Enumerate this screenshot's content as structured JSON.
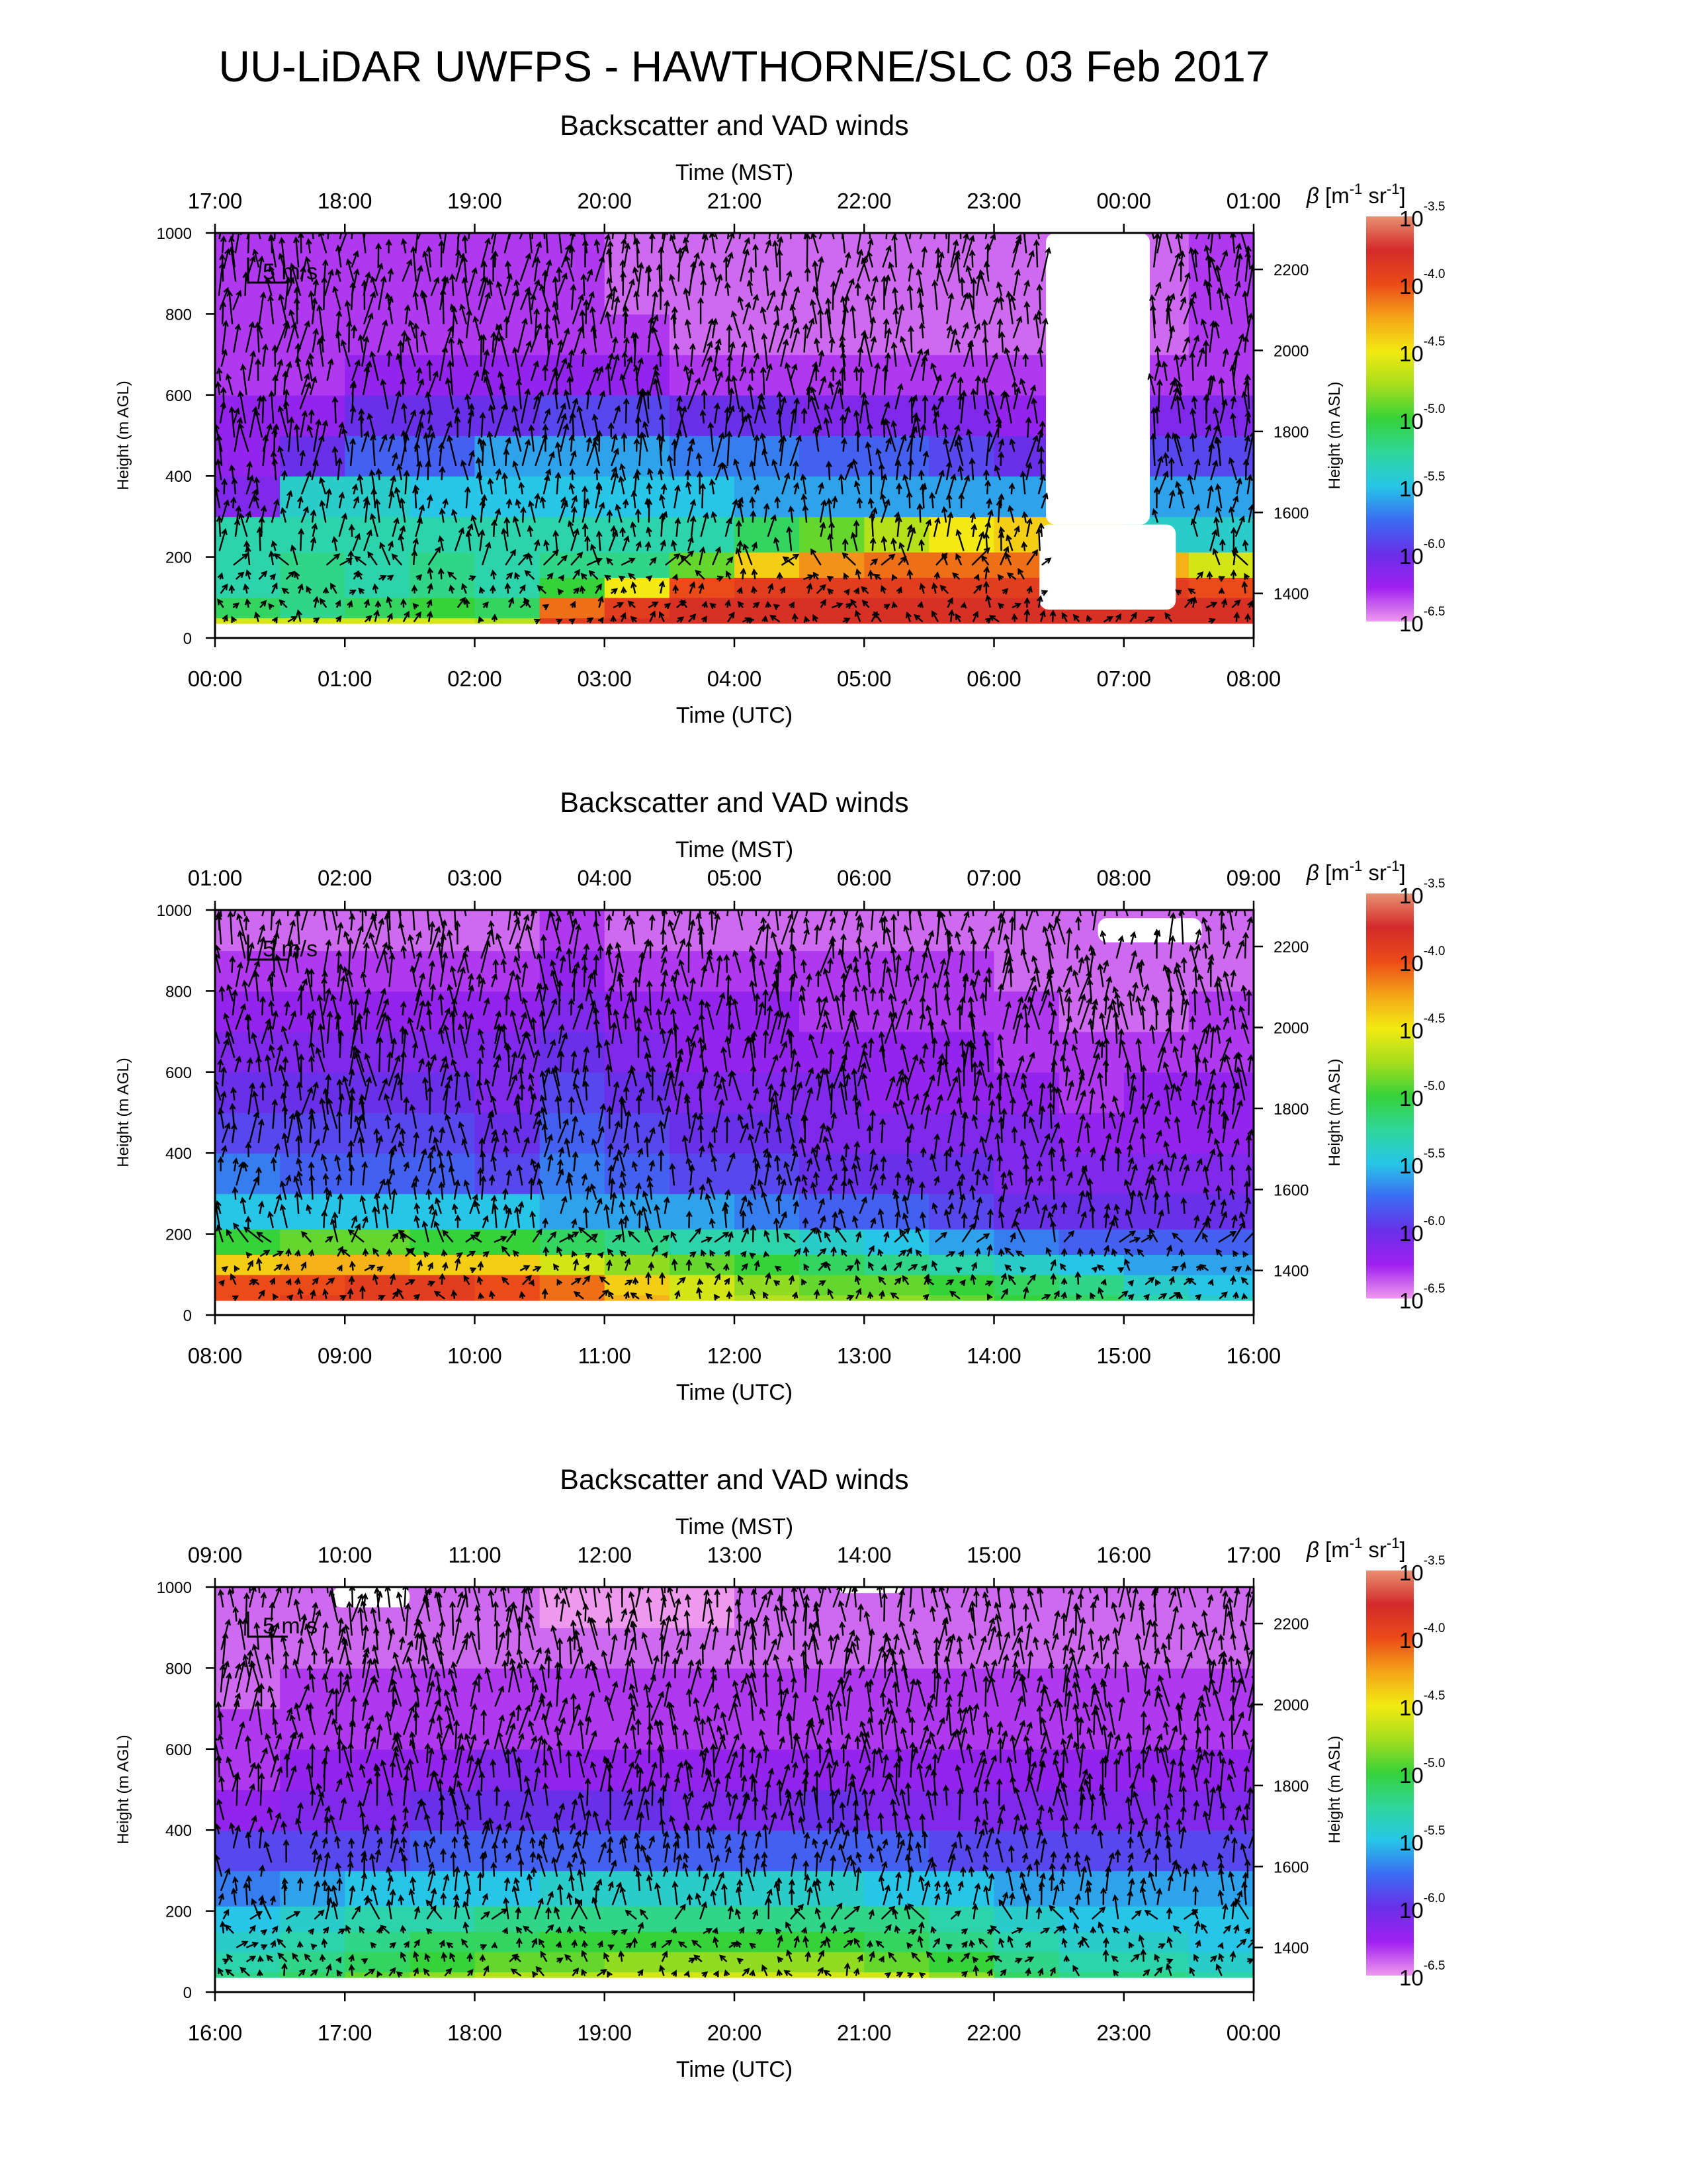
{
  "title": "UU-LiDAR UWFPS - HAWTHORNE/SLC 03 Feb 2017",
  "scale_arrow_label": "5 m/s",
  "colors": {
    "beta_scale": [
      "#ee99ee",
      "#a020f0",
      "#6a2fe8",
      "#3a6cf2",
      "#27c6e8",
      "#2fd69a",
      "#36d23a",
      "#a6de1c",
      "#f2ea12",
      "#f4a418",
      "#ec4a18",
      "#d42a2a",
      "#e89070"
    ],
    "wind_arrows": "#000000",
    "missing": "#ffffff"
  },
  "chart_data": [
    {
      "type": "heatmap",
      "title": "Backscatter and VAD winds",
      "xlabel_top": "Time (MST)",
      "xticks_top": [
        "17:00",
        "18:00",
        "19:00",
        "20:00",
        "21:00",
        "22:00",
        "23:00",
        "00:00",
        "01:00"
      ],
      "xlabel": "Time (UTC)",
      "xticks": [
        "00:00",
        "01:00",
        "02:00",
        "03:00",
        "04:00",
        "05:00",
        "06:00",
        "07:00",
        "08:00"
      ],
      "xlim_utc_hours": [
        0,
        8
      ],
      "ylabel": "Height (m AGL)",
      "yticks": [
        "0",
        "200",
        "400",
        "600",
        "800",
        "1000"
      ],
      "ylim": [
        0,
        1000
      ],
      "ylabel_right": "Height (m ASL)",
      "yticks_right": [
        "1400",
        "1600",
        "1800",
        "2000",
        "2200"
      ],
      "colorbar_label": "β [m-1 sr-1]",
      "colorbar_log10_ticks": [
        "-3.5",
        "-4.0",
        "-4.5",
        "-5.0",
        "-5.5",
        "-6.0",
        "-6.5"
      ],
      "colorbar_range_log10": [
        -6.5,
        -3.5
      ],
      "grid": false,
      "log10_beta_rows_heights_m": [
        25,
        75,
        125,
        175,
        250,
        350,
        450,
        550,
        650,
        750,
        850,
        950
      ],
      "log10_beta_cols_utc_hours": [
        0.25,
        0.75,
        1.25,
        1.75,
        2.25,
        2.75,
        3.25,
        3.75,
        4.25,
        4.75,
        5.25,
        5.75,
        6.25,
        6.75,
        7.25,
        7.75
      ],
      "log10_beta": [
        [
          -4.6,
          -4.6,
          -4.6,
          -4.6,
          -4.7,
          -3.9,
          -3.8,
          -3.8,
          -3.8,
          -3.8,
          -3.8,
          -3.8,
          -3.8,
          -3.8,
          -3.8,
          -3.8
        ],
        [
          -5.1,
          -5.2,
          -5.1,
          -5.0,
          -5.1,
          -4.1,
          -3.9,
          -3.8,
          -3.8,
          -3.8,
          -3.8,
          -3.8,
          -3.8,
          -3.8,
          -3.8,
          -3.8
        ],
        [
          -5.3,
          -5.2,
          -5.3,
          -5.2,
          -5.3,
          -5.0,
          -4.5,
          -4.0,
          -3.9,
          -3.9,
          -3.9,
          -3.9,
          -3.9,
          -3.9,
          -3.9,
          -4.0
        ],
        [
          -5.3,
          -5.2,
          -5.3,
          -5.2,
          -5.3,
          -5.2,
          -5.2,
          -4.9,
          -4.4,
          -4.2,
          -4.1,
          -4.1,
          -4.1,
          -4.1,
          -4.3,
          -4.6
        ],
        [
          -5.3,
          -5.3,
          -5.3,
          -5.3,
          -5.3,
          -5.3,
          -5.3,
          -5.3,
          -5.1,
          -4.9,
          -4.7,
          -4.5,
          -4.4,
          -4.6,
          -5.4,
          -5.4
        ],
        [
          -6.1,
          -5.4,
          -5.4,
          -5.5,
          -5.5,
          -5.5,
          -5.5,
          -5.5,
          -5.6,
          -5.6,
          -5.6,
          -5.6,
          -5.6,
          -5.7,
          -5.6,
          -5.6
        ],
        [
          -6.2,
          -6.0,
          -5.8,
          -5.8,
          -5.6,
          -5.6,
          -5.6,
          -5.7,
          -5.7,
          -5.8,
          -5.8,
          -5.9,
          -6.0,
          -6.1,
          -5.9,
          -5.9
        ],
        [
          -6.2,
          -6.2,
          -6.0,
          -6.0,
          -6.0,
          -5.9,
          -5.9,
          -6.0,
          -6.0,
          -6.1,
          -6.1,
          -6.1,
          -6.2,
          -6.2,
          -6.1,
          -6.1
        ],
        [
          -6.3,
          -6.3,
          -6.2,
          -6.2,
          -6.2,
          -6.2,
          -6.2,
          -6.3,
          -6.3,
          -6.3,
          -6.3,
          -6.3,
          -6.3,
          -6.3,
          -6.3,
          -6.3
        ],
        [
          -6.3,
          -6.3,
          -6.3,
          -6.3,
          -6.3,
          -6.3,
          -6.3,
          -6.4,
          -6.4,
          -6.4,
          -6.4,
          -6.4,
          -6.4,
          -6.4,
          -6.4,
          -6.3
        ],
        [
          -6.3,
          -6.3,
          -6.3,
          -6.3,
          -6.3,
          -6.3,
          -6.4,
          -6.4,
          -6.4,
          -6.4,
          -6.4,
          -6.4,
          -6.4,
          -6.4,
          -6.4,
          -6.3
        ],
        [
          -6.3,
          -6.3,
          -6.3,
          -6.3,
          -6.3,
          -6.3,
          -6.4,
          -6.4,
          -6.4,
          -6.4,
          -6.4,
          -6.4,
          -6.4,
          -6.4,
          -6.4,
          -6.3
        ]
      ],
      "missing_data": [
        {
          "utc_hours": [
            6.4,
            7.2
          ],
          "height_m": [
            280,
            1000
          ]
        },
        {
          "utc_hours": [
            6.35,
            7.4
          ],
          "height_m": [
            70,
            280
          ]
        }
      ],
      "wind_field": "dense VAD vectors; mostly northward at low levels, north-northeastward aloft before 02:30 UTC; weak near surface"
    },
    {
      "type": "heatmap",
      "title": "Backscatter and VAD winds",
      "xlabel_top": "Time (MST)",
      "xticks_top": [
        "01:00",
        "02:00",
        "03:00",
        "04:00",
        "05:00",
        "06:00",
        "07:00",
        "08:00",
        "09:00"
      ],
      "xlabel": "Time (UTC)",
      "xticks": [
        "08:00",
        "09:00",
        "10:00",
        "11:00",
        "12:00",
        "13:00",
        "14:00",
        "15:00",
        "16:00"
      ],
      "xlim_utc_hours": [
        8,
        16
      ],
      "ylabel": "Height (m AGL)",
      "yticks": [
        "0",
        "200",
        "400",
        "600",
        "800",
        "1000"
      ],
      "ylim": [
        0,
        1000
      ],
      "ylabel_right": "Height (m ASL)",
      "yticks_right": [
        "1400",
        "1600",
        "1800",
        "2000",
        "2200"
      ],
      "colorbar_label": "β [m-1 sr-1]",
      "colorbar_log10_ticks": [
        "-3.5",
        "-4.0",
        "-4.5",
        "-5.0",
        "-5.5",
        "-6.0",
        "-6.5"
      ],
      "colorbar_range_log10": [
        -6.5,
        -3.5
      ],
      "grid": false,
      "log10_beta_rows_heights_m": [
        25,
        75,
        125,
        175,
        250,
        350,
        450,
        550,
        650,
        750,
        850,
        950
      ],
      "log10_beta_cols_utc_hours": [
        8.25,
        8.75,
        9.25,
        9.75,
        10.25,
        10.75,
        11.25,
        11.75,
        12.25,
        12.75,
        13.25,
        13.75,
        14.25,
        14.75,
        15.25,
        15.75
      ],
      "log10_beta": [
        [
          -4.0,
          -3.9,
          -3.9,
          -3.9,
          -4.0,
          -4.1,
          -4.3,
          -4.6,
          -4.7,
          -4.8,
          -4.8,
          -4.9,
          -5.0,
          -5.1,
          -5.3,
          -5.4
        ],
        [
          -4.0,
          -4.0,
          -3.9,
          -3.9,
          -4.0,
          -4.1,
          -4.4,
          -4.6,
          -4.8,
          -4.9,
          -4.9,
          -5.0,
          -5.1,
          -5.2,
          -5.4,
          -5.5
        ],
        [
          -4.4,
          -4.3,
          -4.3,
          -4.4,
          -4.4,
          -4.6,
          -4.8,
          -4.9,
          -5.0,
          -5.1,
          -5.2,
          -5.3,
          -5.4,
          -5.5,
          -5.6,
          -5.6
        ],
        [
          -5.0,
          -4.9,
          -4.9,
          -5.0,
          -5.0,
          -5.1,
          -5.2,
          -5.3,
          -5.3,
          -5.4,
          -5.5,
          -5.6,
          -5.7,
          -5.8,
          -5.8,
          -5.8
        ],
        [
          -5.5,
          -5.5,
          -5.5,
          -5.5,
          -5.5,
          -5.6,
          -5.6,
          -5.6,
          -5.7,
          -5.8,
          -5.8,
          -5.9,
          -6.0,
          -6.0,
          -6.0,
          -6.0
        ],
        [
          -5.7,
          -5.8,
          -5.8,
          -5.8,
          -5.9,
          -5.7,
          -5.8,
          -5.9,
          -5.9,
          -6.0,
          -6.0,
          -6.0,
          -6.1,
          -6.1,
          -6.1,
          -6.1
        ],
        [
          -5.9,
          -5.9,
          -5.9,
          -5.9,
          -6.0,
          -5.8,
          -5.9,
          -6.0,
          -6.0,
          -6.1,
          -6.1,
          -6.1,
          -6.1,
          -6.2,
          -6.2,
          -6.2
        ],
        [
          -6.0,
          -6.0,
          -6.0,
          -6.0,
          -6.1,
          -5.9,
          -6.0,
          -6.1,
          -6.1,
          -6.1,
          -6.2,
          -6.2,
          -6.2,
          -6.3,
          -6.2,
          -6.2
        ],
        [
          -6.1,
          -6.1,
          -6.1,
          -6.1,
          -6.1,
          -6.0,
          -6.1,
          -6.2,
          -6.2,
          -6.2,
          -6.2,
          -6.2,
          -6.3,
          -6.3,
          -6.3,
          -6.3
        ],
        [
          -6.2,
          -6.2,
          -6.2,
          -6.2,
          -6.2,
          -6.1,
          -6.2,
          -6.2,
          -6.2,
          -6.3,
          -6.3,
          -6.3,
          -6.3,
          -6.4,
          -6.4,
          -6.3
        ],
        [
          -6.3,
          -6.3,
          -6.3,
          -6.3,
          -6.3,
          -6.2,
          -6.3,
          -6.3,
          -6.3,
          -6.3,
          -6.3,
          -6.3,
          -6.4,
          -6.4,
          -6.4,
          -6.4
        ],
        [
          -6.4,
          -6.4,
          -6.4,
          -6.4,
          -6.4,
          -6.3,
          -6.4,
          -6.4,
          -6.4,
          -6.4,
          -6.4,
          -6.4,
          -6.4,
          -6.4,
          -6.4,
          -6.4
        ]
      ],
      "missing_data": [
        {
          "utc_hours": [
            14.8,
            15.6
          ],
          "height_m": [
            920,
            980
          ]
        }
      ],
      "wind_field": "dense VAD vectors; strong northward flow through the column, turbulent mixed directions 12:00-15:00 UTC below 700 m"
    },
    {
      "type": "heatmap",
      "title": "Backscatter and VAD winds",
      "xlabel_top": "Time (MST)",
      "xticks_top": [
        "09:00",
        "10:00",
        "11:00",
        "12:00",
        "13:00",
        "14:00",
        "15:00",
        "16:00",
        "17:00"
      ],
      "xlabel": "Time (UTC)",
      "xticks": [
        "16:00",
        "17:00",
        "18:00",
        "19:00",
        "20:00",
        "21:00",
        "22:00",
        "23:00",
        "00:00"
      ],
      "xlim_utc_hours": [
        16,
        24
      ],
      "ylabel": "Height (m AGL)",
      "yticks": [
        "0",
        "200",
        "400",
        "600",
        "800",
        "1000"
      ],
      "ylim": [
        0,
        1000
      ],
      "ylabel_right": "Height (m ASL)",
      "yticks_right": [
        "1400",
        "1600",
        "1800",
        "2000",
        "2200"
      ],
      "colorbar_label": "β [m-1 sr-1]",
      "colorbar_log10_ticks": [
        "-3.5",
        "-4.0",
        "-4.5",
        "-5.0",
        "-5.5",
        "-6.0",
        "-6.5"
      ],
      "colorbar_range_log10": [
        -6.5,
        -3.5
      ],
      "grid": false,
      "log10_beta_rows_heights_m": [
        25,
        75,
        125,
        175,
        250,
        350,
        450,
        550,
        650,
        750,
        850,
        950
      ],
      "log10_beta_cols_utc_hours": [
        16.25,
        16.75,
        17.25,
        17.75,
        18.25,
        18.75,
        19.25,
        19.75,
        20.25,
        20.75,
        21.25,
        21.75,
        22.25,
        22.75,
        23.25,
        23.75
      ],
      "log10_beta": [
        [
          -5.2,
          -5.1,
          -4.9,
          -4.8,
          -4.7,
          -4.7,
          -4.6,
          -4.6,
          -4.6,
          -4.6,
          -4.6,
          -4.8,
          -5.1,
          -5.2,
          -5.2,
          -5.3
        ],
        [
          -5.3,
          -5.2,
          -5.1,
          -5.0,
          -4.9,
          -4.9,
          -4.8,
          -4.8,
          -4.8,
          -4.8,
          -4.9,
          -5.0,
          -5.2,
          -5.3,
          -5.3,
          -5.4
        ],
        [
          -5.4,
          -5.3,
          -5.2,
          -5.1,
          -5.1,
          -5.0,
          -5.0,
          -5.0,
          -5.0,
          -5.0,
          -5.1,
          -5.2,
          -5.3,
          -5.4,
          -5.4,
          -5.5
        ],
        [
          -5.5,
          -5.4,
          -5.3,
          -5.3,
          -5.2,
          -5.2,
          -5.2,
          -5.2,
          -5.2,
          -5.2,
          -5.2,
          -5.3,
          -5.4,
          -5.5,
          -5.5,
          -5.5
        ],
        [
          -5.7,
          -5.6,
          -5.5,
          -5.5,
          -5.5,
          -5.4,
          -5.4,
          -5.4,
          -5.4,
          -5.4,
          -5.5,
          -5.5,
          -5.6,
          -5.6,
          -5.6,
          -5.6
        ],
        [
          -5.9,
          -5.9,
          -5.9,
          -5.8,
          -5.8,
          -5.8,
          -5.8,
          -5.8,
          -5.8,
          -5.8,
          -5.8,
          -5.9,
          -5.9,
          -5.9,
          -5.9,
          -5.9
        ],
        [
          -6.2,
          -6.1,
          -6.1,
          -6.0,
          -6.0,
          -6.0,
          -6.0,
          -6.1,
          -6.1,
          -6.0,
          -6.1,
          -6.1,
          -6.1,
          -6.1,
          -6.1,
          -6.1
        ],
        [
          -6.3,
          -6.2,
          -6.2,
          -6.2,
          -6.1,
          -6.2,
          -6.2,
          -6.2,
          -6.2,
          -6.2,
          -6.2,
          -6.2,
          -6.2,
          -6.2,
          -6.2,
          -6.2
        ],
        [
          -6.3,
          -6.3,
          -6.3,
          -6.3,
          -6.3,
          -6.3,
          -6.3,
          -6.3,
          -6.3,
          -6.3,
          -6.3,
          -6.3,
          -6.3,
          -6.3,
          -6.3,
          -6.3
        ],
        [
          -6.4,
          -6.3,
          -6.3,
          -6.3,
          -6.3,
          -6.3,
          -6.3,
          -6.3,
          -6.3,
          -6.3,
          -6.3,
          -6.3,
          -6.3,
          -6.3,
          -6.3,
          -6.3
        ],
        [
          -6.4,
          -6.4,
          -6.4,
          -6.4,
          -6.4,
          -6.4,
          -6.4,
          -6.4,
          -6.4,
          -6.4,
          -6.4,
          -6.4,
          -6.4,
          -6.4,
          -6.4,
          -6.4
        ],
        [
          -6.4,
          -6.4,
          -6.4,
          -6.4,
          -6.4,
          -6.5,
          -6.5,
          -6.5,
          -6.4,
          -6.4,
          -6.4,
          -6.4,
          -6.4,
          -6.4,
          -6.4,
          -6.4
        ]
      ],
      "missing_data": [
        {
          "utc_hours": [
            16.9,
            17.5
          ],
          "height_m": [
            950,
            1000
          ]
        },
        {
          "utc_hours": [
            20.8,
            21.3
          ],
          "height_m": [
            985,
            1000
          ]
        }
      ],
      "wind_field": "dense VAD vectors; predominantly northward flow at all heights, weaker and variable below 300 m"
    }
  ]
}
